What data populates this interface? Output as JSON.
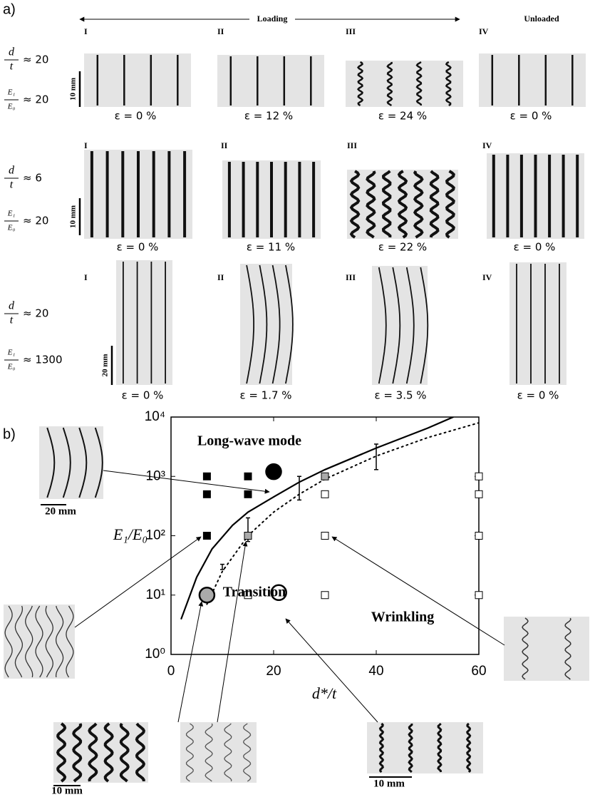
{
  "panel_a": {
    "label": "a)",
    "loading": "Loading",
    "unloaded": "Unloaded",
    "rows": [
      {
        "params": [
          {
            "num": "d",
            "den": "t",
            "rel": "≈ 20"
          },
          {
            "num": "E₁",
            "den": "E₀",
            "rel": "≈ 20"
          }
        ],
        "scale": "10 mm",
        "stages": [
          {
            "numeral": "I",
            "strain": "ε = 0 %"
          },
          {
            "numeral": "II",
            "strain": "ε = 12 %"
          },
          {
            "numeral": "III",
            "strain": "ε = 24 %"
          },
          {
            "numeral": "IV",
            "strain": "ε = 0 %"
          }
        ]
      },
      {
        "params": [
          {
            "num": "d",
            "den": "t",
            "rel": "≈ 6"
          },
          {
            "num": "E₁",
            "den": "E₀",
            "rel": "≈ 20"
          }
        ],
        "scale": "10 mm",
        "stages": [
          {
            "numeral": "I",
            "strain": "ε = 0 %"
          },
          {
            "numeral": "II",
            "strain": "ε = 11 %"
          },
          {
            "numeral": "III",
            "strain": "ε = 22 %"
          },
          {
            "numeral": "IV",
            "strain": "ε = 0 %"
          }
        ]
      },
      {
        "params": [
          {
            "num": "d",
            "den": "t",
            "rel": "≈ 20"
          },
          {
            "num": "E₁",
            "den": "E₀",
            "rel": "≈ 1300"
          }
        ],
        "scale": "20 mm",
        "stages": [
          {
            "numeral": "I",
            "strain": "ε = 0 %"
          },
          {
            "numeral": "II",
            "strain": "ε = 1.7 %"
          },
          {
            "numeral": "III",
            "strain": "ε = 3.5 %"
          },
          {
            "numeral": "IV",
            "strain": "ε = 0 %"
          }
        ]
      }
    ]
  },
  "chart_data": {
    "type": "scatter",
    "panel_label": "b)",
    "xlabel": "d*/t",
    "ylabel": "E₁/E₀",
    "xlim": [
      0,
      60
    ],
    "xticks": [
      0,
      20,
      40,
      60
    ],
    "ylim": [
      1,
      10000
    ],
    "log_y": true,
    "yticks": [
      {
        "value": 1,
        "label": "10⁰"
      },
      {
        "value": 10,
        "label": "10¹"
      },
      {
        "value": 100,
        "label": "10²"
      },
      {
        "value": 1000,
        "label": "10³"
      },
      {
        "value": 10000,
        "label": "10⁴"
      }
    ],
    "series": [
      {
        "marker": "square",
        "color": "#000000",
        "x": [
          7,
          15,
          7,
          15,
          7
        ],
        "y": [
          1000,
          1000,
          500,
          500,
          100
        ]
      },
      {
        "marker": "square",
        "color": "#aaaaaa",
        "x": [
          30,
          15
        ],
        "y": [
          1000,
          100
        ]
      },
      {
        "marker": "square",
        "color": "#ffffff",
        "x": [
          30,
          30,
          15,
          30,
          60,
          60,
          60,
          60
        ],
        "y": [
          500,
          100,
          10,
          10,
          1000,
          500,
          100,
          10
        ]
      },
      {
        "marker": "circle",
        "color": "#000000",
        "x": [
          20
        ],
        "y": [
          1200
        ]
      },
      {
        "marker": "circle",
        "color": "#aaaaaa",
        "x": [
          7
        ],
        "y": [
          10
        ]
      },
      {
        "marker": "circle",
        "color": "#ffffff",
        "x": [
          21
        ],
        "y": [
          11
        ]
      }
    ],
    "error_bars": {
      "x": [
        10,
        15,
        25,
        40
      ],
      "low": [
        27,
        80,
        400,
        1300
      ],
      "high": [
        33,
        200,
        1000,
        3500
      ]
    },
    "curves": [
      {
        "style": "solid",
        "x": [
          2,
          5,
          8,
          12,
          15,
          20,
          25,
          30,
          40,
          50,
          55
        ],
        "y": [
          4,
          20,
          60,
          150,
          250,
          450,
          800,
          1300,
          3000,
          6500,
          10000
        ]
      },
      {
        "style": "dotted",
        "x": [
          7,
          10,
          15,
          20,
          25,
          30,
          40,
          50,
          60
        ],
        "y": [
          7,
          25,
          100,
          250,
          500,
          900,
          2200,
          4500,
          8000
        ]
      }
    ],
    "annotations": [
      "Long-wave mode",
      "Transition",
      "Wrinkling"
    ],
    "scale_labels": [
      "20 mm",
      "10 mm",
      "10 mm"
    ]
  }
}
